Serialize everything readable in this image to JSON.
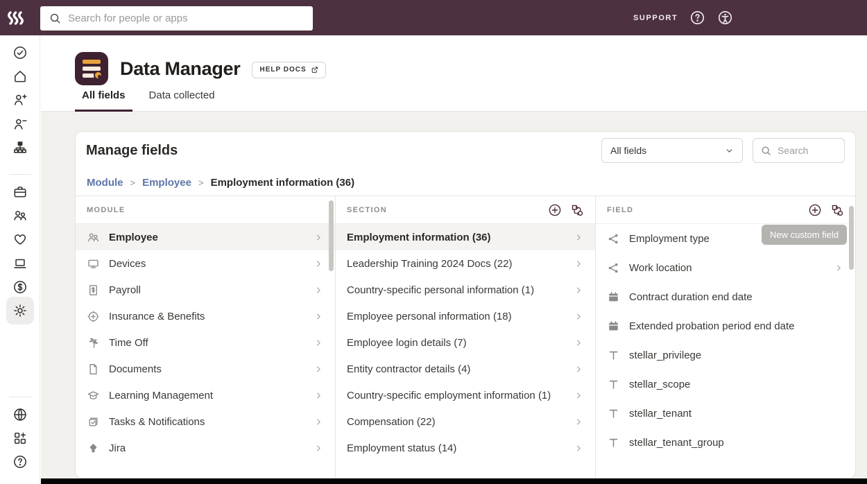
{
  "topbar": {
    "search_placeholder": "Search for people or apps",
    "support_label": "SUPPORT"
  },
  "sidebar": {
    "items": [
      {
        "icon": "check-circle-icon"
      },
      {
        "icon": "home-icon"
      },
      {
        "icon": "add-person-icon"
      },
      {
        "icon": "remove-person-icon"
      },
      {
        "icon": "org-chart-icon"
      },
      {
        "divider": true
      },
      {
        "icon": "briefcase-icon"
      },
      {
        "icon": "people-icon"
      },
      {
        "icon": "heart-icon"
      },
      {
        "icon": "laptop-icon"
      },
      {
        "icon": "dollar-circle-icon"
      },
      {
        "icon": "gear-icon",
        "selected": true
      },
      {
        "divider": true
      },
      {
        "icon": "globe-icon"
      },
      {
        "icon": "apps-icon"
      },
      {
        "icon": "help-circle-icon"
      }
    ]
  },
  "header": {
    "app_title": "Data Manager",
    "help_docs_label": "HELP DOCS",
    "tabs": [
      {
        "label": "All fields",
        "active": true
      },
      {
        "label": "Data collected",
        "active": false
      }
    ]
  },
  "panel": {
    "title": "Manage fields",
    "filter_value": "All fields",
    "search_placeholder": "Search",
    "breadcrumb": [
      {
        "label": "Module",
        "current": false
      },
      {
        "label": "Employee",
        "current": false
      },
      {
        "label": "Employment information (36)",
        "current": true
      }
    ]
  },
  "columns": {
    "module": {
      "header": "MODULE",
      "items": [
        {
          "label": "Employee",
          "icon": "people-icon",
          "selected": true,
          "chevron": true
        },
        {
          "label": "Devices",
          "icon": "monitor-icon",
          "chevron": true
        },
        {
          "label": "Payroll",
          "icon": "payroll-icon",
          "chevron": true
        },
        {
          "label": "Insurance & Benefits",
          "icon": "benefits-icon",
          "chevron": true
        },
        {
          "label": "Time Off",
          "icon": "palm-icon",
          "chevron": true
        },
        {
          "label": "Documents",
          "icon": "document-icon",
          "chevron": true
        },
        {
          "label": "Learning Management",
          "icon": "graduation-icon",
          "chevron": true
        },
        {
          "label": "Tasks & Notifications",
          "icon": "tasks-icon",
          "chevron": true
        },
        {
          "label": "Jira",
          "icon": "jira-icon",
          "chevron": true
        }
      ]
    },
    "section": {
      "header": "SECTION",
      "items": [
        {
          "label": "Employment information (36)",
          "selected": true,
          "chevron": true
        },
        {
          "label": "Leadership Training 2024 Docs (22)",
          "chevron": true
        },
        {
          "label": "Country-specific personal information (1)",
          "chevron": true
        },
        {
          "label": "Employee personal information (18)",
          "chevron": true
        },
        {
          "label": "Employee login details (7)",
          "chevron": true
        },
        {
          "label": "Entity contractor details (4)",
          "chevron": true
        },
        {
          "label": "Country-specific employment information (1)",
          "chevron": true
        },
        {
          "label": "Compensation (22)",
          "chevron": true
        },
        {
          "label": "Employment status (14)",
          "chevron": true
        }
      ]
    },
    "field": {
      "header": "FIELD",
      "tooltip": "New custom field",
      "items": [
        {
          "label": "Employment type",
          "icon": "share-icon",
          "chevron": true
        },
        {
          "label": "Work location",
          "icon": "share-icon",
          "chevron": true
        },
        {
          "label": "Contract duration end date",
          "icon": "calendar-icon",
          "chevron": false
        },
        {
          "label": "Extended probation period end date",
          "icon": "calendar-icon",
          "chevron": false
        },
        {
          "label": "stellar_privilege",
          "icon": "text-field-icon",
          "chevron": false
        },
        {
          "label": "stellar_scope",
          "icon": "text-field-icon",
          "chevron": false
        },
        {
          "label": "stellar_tenant",
          "icon": "text-field-icon",
          "chevron": false
        },
        {
          "label": "stellar_tenant_group",
          "icon": "text-field-icon",
          "chevron": false
        }
      ]
    }
  },
  "colors": {
    "topbar_bg": "#4e3140",
    "brand_maroon": "#3f2231",
    "accent_orange": "#e8a33d",
    "tab_underline": "#3d2130",
    "selected_row_bg": "#f4f3f1",
    "breadcrumb_link": "#5d76a9",
    "tooltip_bg": "#b5b3b0",
    "content_bg": "#f2f1ee"
  }
}
